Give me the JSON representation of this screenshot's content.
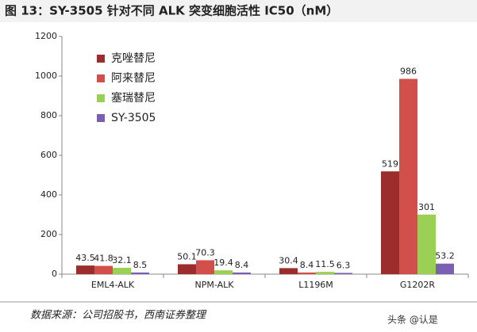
{
  "chart_data": {
    "type": "bar",
    "title": "图 13：SY-3505 针对不同 ALK 突变细胞活性 IC50（nM）",
    "source": "数据来源：公司招股书，西南证券整理",
    "watermark": "头条 @认是",
    "categories": [
      "EML4-ALK",
      "NPM-ALK",
      "L1196M",
      "G1202R"
    ],
    "series": [
      {
        "name": "克唑替尼",
        "color": "#9b2d2d",
        "values": [
          43.5,
          50.1,
          30.4,
          519
        ]
      },
      {
        "name": "阿来替尼",
        "color": "#d2504c",
        "values": [
          41.8,
          70.3,
          8.4,
          986
        ]
      },
      {
        "name": "塞瑞替尼",
        "color": "#9bcf55",
        "values": [
          32.1,
          19.4,
          11.5,
          301
        ]
      },
      {
        "name": "SY-3505",
        "color": "#7b5fb0",
        "values": [
          8.5,
          8.4,
          6.3,
          53.2
        ]
      }
    ],
    "ylim": [
      0,
      1200
    ],
    "yticks": [
      0,
      200,
      400,
      600,
      800,
      1000,
      1200
    ],
    "grid": false,
    "legend": "upper left"
  }
}
